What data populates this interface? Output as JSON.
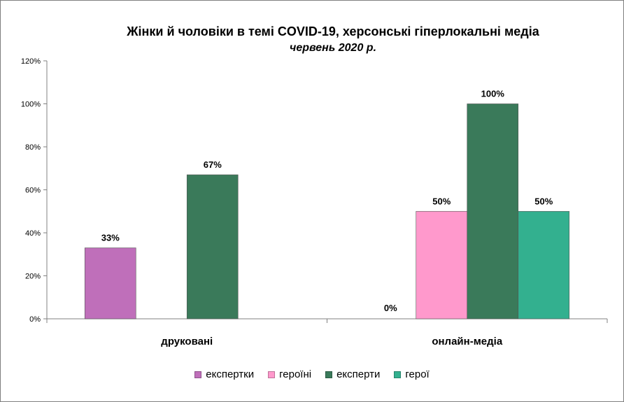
{
  "chart_data": {
    "type": "bar",
    "title": "Жінки й чоловіки  в темі COVID-19, херсонські гіперлокальні  медіа",
    "subtitle": "червень 2020 р.",
    "categories": [
      "друковані",
      "онлайн-медіа"
    ],
    "series": [
      {
        "name": "експертки",
        "color": "#bf6fba",
        "values": [
          33,
          0
        ],
        "labels": [
          "33%",
          "0%"
        ]
      },
      {
        "name": "героїні",
        "color": "#ff99cc",
        "values": [
          null,
          50
        ],
        "labels": [
          "",
          "50%"
        ]
      },
      {
        "name": "експерти",
        "color": "#3a7a5a",
        "values": [
          67,
          100
        ],
        "labels": [
          "67%",
          "100%"
        ]
      },
      {
        "name": "герої",
        "color": "#33b08f",
        "values": [
          null,
          50
        ],
        "labels": [
          "",
          "50%"
        ]
      }
    ],
    "yticks": [
      "0%",
      "20%",
      "40%",
      "60%",
      "80%",
      "100%",
      "120%"
    ],
    "ylim": [
      0,
      120
    ],
    "legend_position": "bottom",
    "grid": false
  }
}
